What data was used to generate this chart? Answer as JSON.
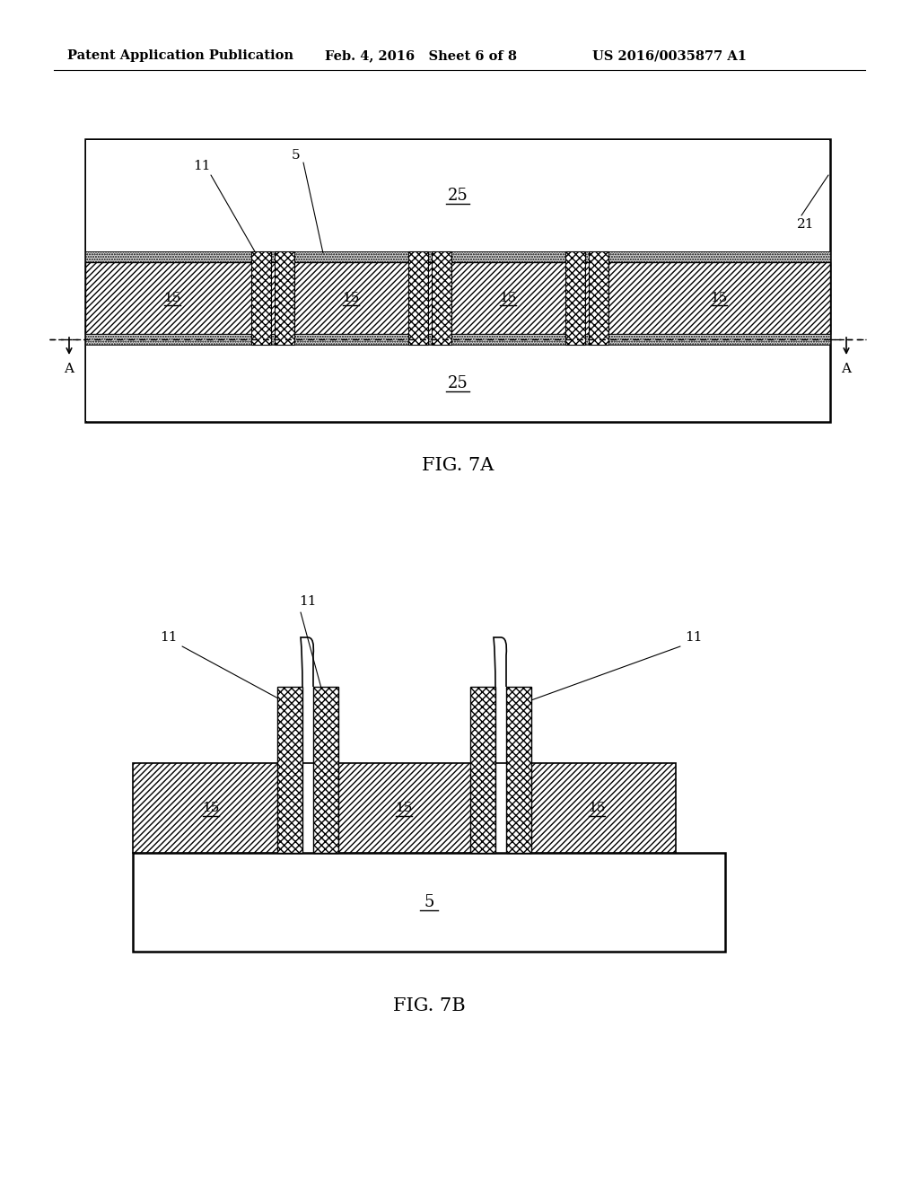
{
  "bg_color": "#ffffff",
  "header_left": "Patent Application Publication",
  "header_center": "Feb. 4, 2016   Sheet 6 of 8",
  "header_right": "US 2016/0035877 A1",
  "fig7a_caption": "FIG. 7A",
  "fig7b_caption": "FIG. 7B"
}
